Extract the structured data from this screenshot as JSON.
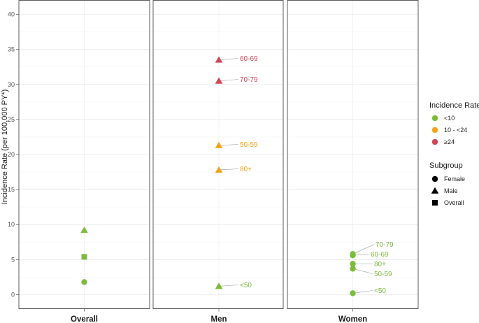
{
  "chart_data": {
    "type": "scatter",
    "ylabel": "Incidence Rate (per 100,000 PY*)",
    "ylim": [
      -2,
      42
    ],
    "yticks": [
      0,
      5,
      10,
      15,
      20,
      25,
      30,
      35,
      40
    ],
    "panels": [
      "Overall",
      "Men",
      "Women"
    ],
    "categories": {
      "low": "<10",
      "mid": "10 - <24",
      "high": "≥24"
    },
    "colors": {
      "low": "#7dbb3c",
      "mid": "#f0a41d",
      "high": "#d14558"
    },
    "points": [
      {
        "panel": "Overall",
        "shape": "triangle",
        "subgroup": "Male",
        "value": 9.2,
        "category": "low",
        "label": ""
      },
      {
        "panel": "Overall",
        "shape": "square",
        "subgroup": "Overall",
        "value": 5.4,
        "category": "low",
        "label": ""
      },
      {
        "panel": "Overall",
        "shape": "circle",
        "subgroup": "Female",
        "value": 1.8,
        "category": "low",
        "label": ""
      },
      {
        "panel": "Men",
        "shape": "triangle",
        "subgroup": "Male",
        "value": 33.5,
        "category": "high",
        "label": "60-69"
      },
      {
        "panel": "Men",
        "shape": "triangle",
        "subgroup": "Male",
        "value": 30.5,
        "category": "high",
        "label": "70-79"
      },
      {
        "panel": "Men",
        "shape": "triangle",
        "subgroup": "Male",
        "value": 21.3,
        "category": "mid",
        "label": "50-59"
      },
      {
        "panel": "Men",
        "shape": "triangle",
        "subgroup": "Male",
        "value": 17.8,
        "category": "mid",
        "label": "80+"
      },
      {
        "panel": "Men",
        "shape": "triangle",
        "subgroup": "Male",
        "value": 1.2,
        "category": "low",
        "label": "<50"
      },
      {
        "panel": "Women",
        "shape": "circle",
        "subgroup": "Female",
        "value": 5.8,
        "category": "low",
        "label": "70-79"
      },
      {
        "panel": "Women",
        "shape": "circle",
        "subgroup": "Female",
        "value": 5.6,
        "category": "low",
        "label": "60-69"
      },
      {
        "panel": "Women",
        "shape": "circle",
        "subgroup": "Female",
        "value": 4.4,
        "category": "low",
        "label": "80+"
      },
      {
        "panel": "Women",
        "shape": "circle",
        "subgroup": "Female",
        "value": 3.7,
        "category": "low",
        "label": "50-59"
      },
      {
        "panel": "Women",
        "shape": "circle",
        "subgroup": "Female",
        "value": 0.2,
        "category": "low",
        "label": "<50"
      }
    ],
    "legend": {
      "rate_title": "Incidence Rate",
      "rate_items": [
        {
          "category": "low",
          "label": "<10"
        },
        {
          "category": "mid",
          "label": "10 - <24"
        },
        {
          "category": "high",
          "label": "≥24"
        }
      ],
      "subgroup_title": "Subgroup",
      "subgroup_items": [
        {
          "shape": "circle",
          "label": "Female"
        },
        {
          "shape": "triangle",
          "label": "Male"
        },
        {
          "shape": "square",
          "label": "Overall"
        }
      ],
      "placement": "right"
    }
  }
}
